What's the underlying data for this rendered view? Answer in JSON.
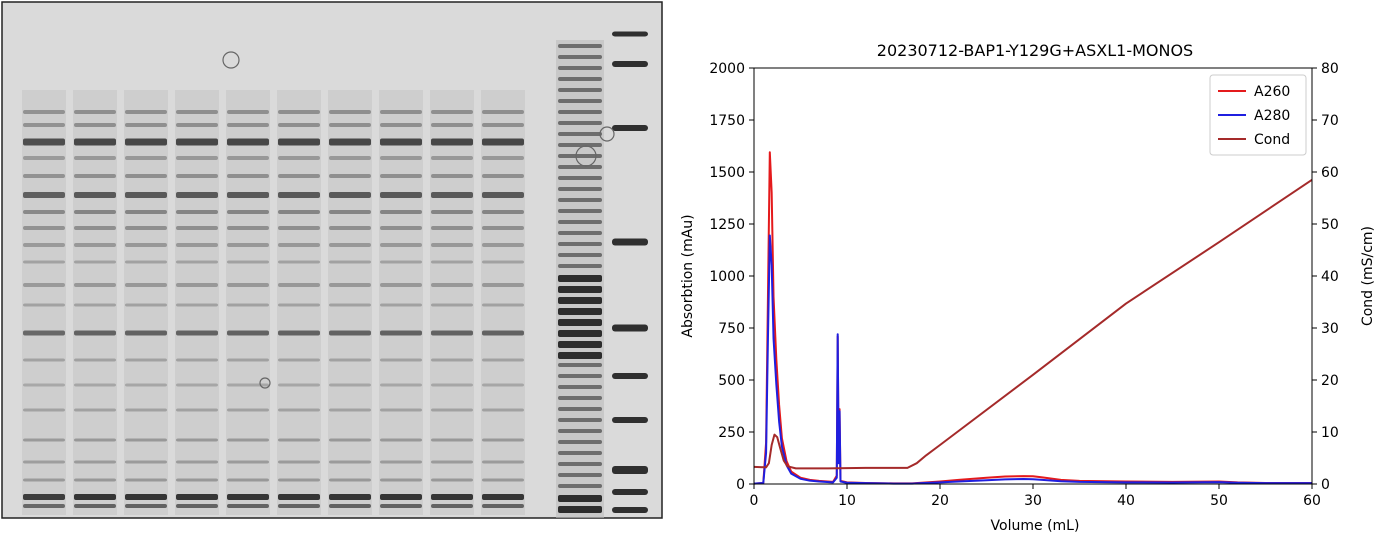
{
  "gel": {
    "lanes": 10,
    "ladders": 2,
    "background": "#dadada"
  },
  "chart_data": {
    "type": "line",
    "title": "20230712-BAP1-Y129G+ASXL1-MONOS",
    "xlabel": "Volume (mL)",
    "ylabel_left": "Absorbtion (mAu)",
    "ylabel_right": "Cond (mS/cm)",
    "xlim": [
      0,
      60
    ],
    "ylim_left": [
      0,
      2000
    ],
    "ylim_right": [
      0,
      80
    ],
    "x_ticks": [
      0,
      10,
      20,
      30,
      40,
      50,
      60
    ],
    "y_ticks_left": [
      0,
      250,
      500,
      750,
      1000,
      1250,
      1500,
      1750,
      2000
    ],
    "y_ticks_right": [
      0,
      10,
      20,
      30,
      40,
      50,
      60,
      70,
      80
    ],
    "legend_position": "top-right",
    "grid": false,
    "series": [
      {
        "name": "A260",
        "axis": "left",
        "color": "#e41a1c",
        "points": [
          [
            0,
            2
          ],
          [
            1.0,
            5
          ],
          [
            1.3,
            200
          ],
          [
            1.5,
            900
          ],
          [
            1.7,
            1595
          ],
          [
            1.9,
            1400
          ],
          [
            2.1,
            900
          ],
          [
            2.4,
            600
          ],
          [
            2.7,
            380
          ],
          [
            3.0,
            220
          ],
          [
            3.5,
            110
          ],
          [
            4.0,
            60
          ],
          [
            5.0,
            30
          ],
          [
            6.0,
            20
          ],
          [
            7.0,
            15
          ],
          [
            8.5,
            10
          ],
          [
            8.9,
            40
          ],
          [
            9.0,
            710
          ],
          [
            9.1,
            120
          ],
          [
            9.2,
            360
          ],
          [
            9.3,
            15
          ],
          [
            10,
            8
          ],
          [
            12,
            5
          ],
          [
            15,
            3
          ],
          [
            17,
            3
          ],
          [
            18,
            6
          ],
          [
            20,
            12
          ],
          [
            22,
            20
          ],
          [
            25,
            30
          ],
          [
            27,
            36
          ],
          [
            29,
            38
          ],
          [
            30,
            37
          ],
          [
            31,
            32
          ],
          [
            33,
            20
          ],
          [
            35,
            15
          ],
          [
            40,
            12
          ],
          [
            45,
            10
          ],
          [
            50,
            12
          ],
          [
            52,
            8
          ],
          [
            55,
            5
          ],
          [
            60,
            5
          ]
        ]
      },
      {
        "name": "A280",
        "axis": "left",
        "color": "#1f1fe0",
        "points": [
          [
            0,
            2
          ],
          [
            1.0,
            5
          ],
          [
            1.3,
            150
          ],
          [
            1.5,
            700
          ],
          [
            1.7,
            1195
          ],
          [
            1.9,
            1050
          ],
          [
            2.1,
            700
          ],
          [
            2.4,
            480
          ],
          [
            2.7,
            300
          ],
          [
            3.0,
            180
          ],
          [
            3.5,
            90
          ],
          [
            4.0,
            50
          ],
          [
            5.0,
            25
          ],
          [
            6.0,
            16
          ],
          [
            7.0,
            12
          ],
          [
            8.5,
            8
          ],
          [
            8.9,
            30
          ],
          [
            9.0,
            720
          ],
          [
            9.1,
            100
          ],
          [
            9.2,
            350
          ],
          [
            9.3,
            12
          ],
          [
            10,
            6
          ],
          [
            12,
            4
          ],
          [
            15,
            2
          ],
          [
            17,
            2
          ],
          [
            18,
            4
          ],
          [
            20,
            8
          ],
          [
            22,
            12
          ],
          [
            25,
            18
          ],
          [
            27,
            22
          ],
          [
            29,
            24
          ],
          [
            30,
            23
          ],
          [
            31,
            20
          ],
          [
            33,
            13
          ],
          [
            35,
            10
          ],
          [
            40,
            8
          ],
          [
            45,
            7
          ],
          [
            50,
            9
          ],
          [
            52,
            6
          ],
          [
            55,
            4
          ],
          [
            60,
            4
          ]
        ]
      },
      {
        "name": "Cond",
        "axis": "right",
        "color": "#a52a2a",
        "points": [
          [
            0,
            3.3
          ],
          [
            1.3,
            3.2
          ],
          [
            1.6,
            4.0
          ],
          [
            1.9,
            7.5
          ],
          [
            2.2,
            9.5
          ],
          [
            2.5,
            9.0
          ],
          [
            2.8,
            7.0
          ],
          [
            3.2,
            4.5
          ],
          [
            3.6,
            3.4
          ],
          [
            4.5,
            3.0
          ],
          [
            8,
            3.0
          ],
          [
            12,
            3.1
          ],
          [
            16.5,
            3.1
          ],
          [
            17.5,
            4.0
          ],
          [
            18.5,
            5.5
          ],
          [
            20,
            7.5
          ],
          [
            30,
            21.0
          ],
          [
            40,
            34.7
          ],
          [
            50,
            46.5
          ],
          [
            60,
            58.5
          ]
        ]
      }
    ]
  }
}
